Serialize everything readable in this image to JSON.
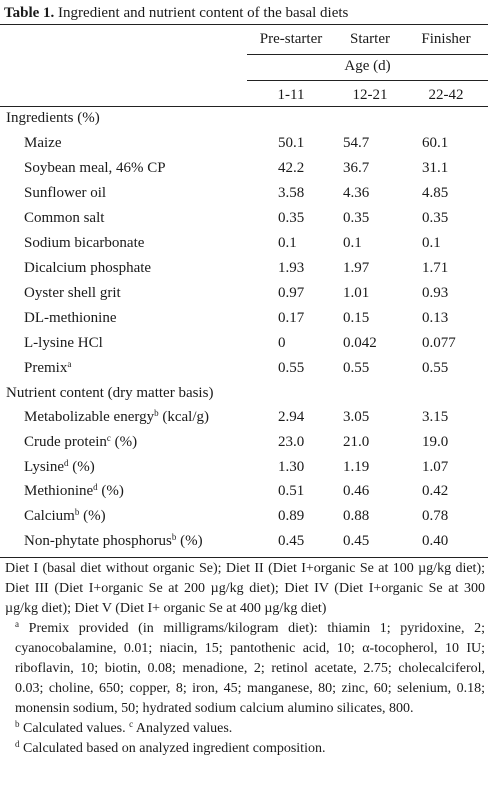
{
  "table": {
    "caption_number": "Table 1.",
    "caption_text": "Ingredient and nutrient content of the basal diets",
    "columns": [
      "Pre-starter",
      "Starter",
      "Finisher"
    ],
    "age_label": "Age (d)",
    "age_ranges": [
      "1-11",
      "12-21",
      "22-42"
    ],
    "ingredients_heading": "Ingredients (%)",
    "ingredients": [
      {
        "name": "Maize",
        "sup": "",
        "values": [
          "50.1",
          "54.7",
          "60.1"
        ]
      },
      {
        "name": "Soybean meal, 46% CP",
        "sup": "",
        "values": [
          "42.2",
          "36.7",
          "31.1"
        ]
      },
      {
        "name": "Sunflower oil",
        "sup": "",
        "values": [
          "3.58",
          "4.36",
          "4.85"
        ]
      },
      {
        "name": "Common salt",
        "sup": "",
        "values": [
          "0.35",
          "0.35",
          "0.35"
        ]
      },
      {
        "name": "Sodium bicarbonate",
        "sup": "",
        "values": [
          "0.1",
          "0.1",
          "0.1"
        ]
      },
      {
        "name": "Dicalcium phosphate",
        "sup": "",
        "values": [
          "1.93",
          "1.97",
          "1.71"
        ]
      },
      {
        "name": "Oyster shell grit",
        "sup": "",
        "values": [
          "0.97",
          "1.01",
          "0.93"
        ]
      },
      {
        "name": "DL-methionine",
        "sup": "",
        "values": [
          "0.17",
          "0.15",
          "0.13"
        ]
      },
      {
        "name": "L-lysine HCl",
        "sup": "",
        "values": [
          "0",
          "0.042",
          "0.077"
        ]
      },
      {
        "name": "Premix",
        "sup": "a",
        "values": [
          "0.55",
          "0.55",
          "0.55"
        ]
      }
    ],
    "nutrients_heading": "Nutrient content (dry matter basis)",
    "nutrients": [
      {
        "name": "Metabolizable energy",
        "sup": "b",
        "suffix": " (kcal/g)",
        "values": [
          "2.94",
          "3.05",
          "3.15"
        ]
      },
      {
        "name": "Crude protein",
        "sup": "c",
        "suffix": " (%)",
        "values": [
          "23.0",
          "21.0",
          "19.0"
        ]
      },
      {
        "name": "Lysine",
        "sup": "d",
        "suffix": " (%)",
        "values": [
          "1.30",
          "1.19",
          "1.07"
        ]
      },
      {
        "name": "Methionine",
        "sup": "d",
        "suffix": " (%)",
        "values": [
          "0.51",
          "0.46",
          "0.42"
        ]
      },
      {
        "name": "Calcium",
        "sup": "b",
        "suffix": " (%)",
        "values": [
          "0.89",
          "0.88",
          "0.78"
        ]
      },
      {
        "name": "Non-phytate phosphorus",
        "sup": "b",
        "suffix": " (%)",
        "values": [
          "0.45",
          "0.45",
          "0.40"
        ]
      }
    ]
  },
  "footnotes": {
    "diets": "Diet I (basal diet without organic Se); Diet II (Diet I+organic Se at 100 µg/kg diet); Diet III (Diet I+organic Se at 200 µg/kg diet); Diet IV (Diet I+organic Se at 300 µg/kg diet); Diet V (Diet I+ organic Se at 400 µg/kg diet)",
    "a_mark": "a",
    "a_text": " Premix provided (in milligrams/kilogram diet): thiamin 1; pyridoxine, 2; cyanocobalamine, 0.01; niacin, 15; pantothenic acid, 10; α-tocopherol, 10 IU; riboflavin, 10; biotin, 0.08; menadione, 2; retinol acetate, 2.75; cholecalciferol, 0.03; choline, 650; copper, 8; iron, 45; manganese, 80; zinc, 60; selenium, 0.18; monensin sodium, 50; hydrated sodium calcium alumino silicates, 800.",
    "b_mark": "b",
    "b_text": " Calculated values. ",
    "c_mark": "c",
    "c_text": " Analyzed values.",
    "d_mark": "d",
    "d_text": " Calculated based on analyzed ingredient composition."
  }
}
